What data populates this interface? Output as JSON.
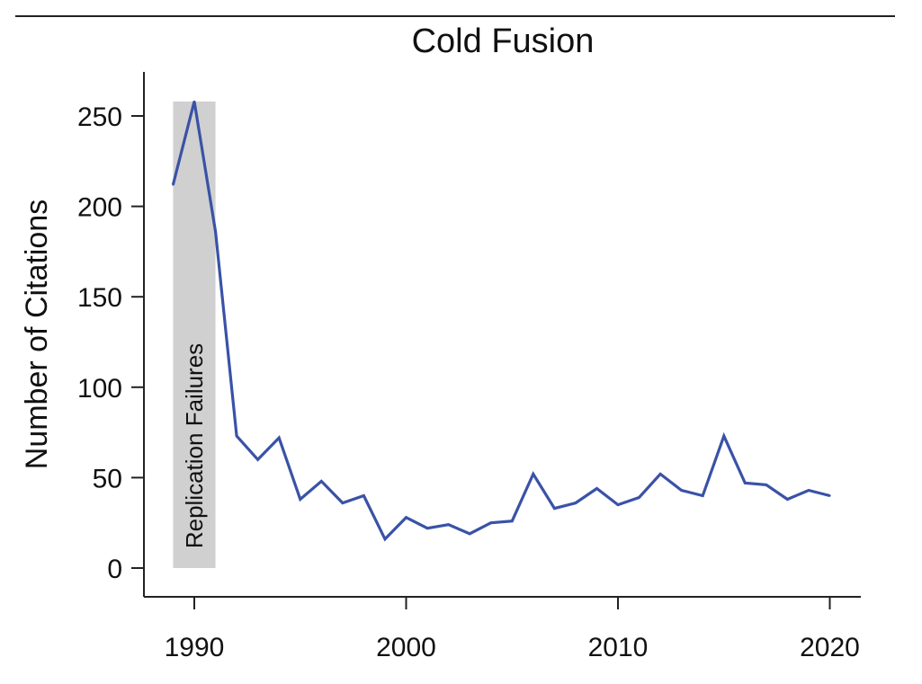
{
  "chart_data": {
    "type": "line",
    "title": "Cold Fusion",
    "xlabel": "",
    "ylabel": "Number of Citations",
    "xlim": [
      1989,
      2020
    ],
    "ylim": [
      0,
      250
    ],
    "x_ticks": [
      1990,
      2000,
      2010,
      2020
    ],
    "y_ticks": [
      0,
      50,
      100,
      150,
      200,
      250
    ],
    "grid": false,
    "series": [
      {
        "color": "#3a52a6",
        "x": [
          1989,
          1990,
          1991,
          1992,
          1993,
          1994,
          1995,
          1996,
          1997,
          1998,
          1999,
          2000,
          2001,
          2002,
          2003,
          2004,
          2005,
          2006,
          2007,
          2008,
          2009,
          2010,
          2011,
          2012,
          2013,
          2014,
          2015,
          2016,
          2017,
          2018,
          2019,
          2020
        ],
        "y": [
          212,
          258,
          186,
          73,
          60,
          72,
          38,
          48,
          36,
          40,
          16,
          28,
          22,
          24,
          19,
          25,
          26,
          52,
          33,
          36,
          44,
          35,
          39,
          52,
          43,
          40,
          73,
          47,
          46,
          38,
          43,
          40
        ]
      }
    ],
    "annotations": [
      {
        "type": "band",
        "label": "Replication Failures",
        "x_start": 1989,
        "x_end": 1991,
        "y_start": 0,
        "y_end": 258,
        "color": "#d0d0d0"
      }
    ]
  }
}
